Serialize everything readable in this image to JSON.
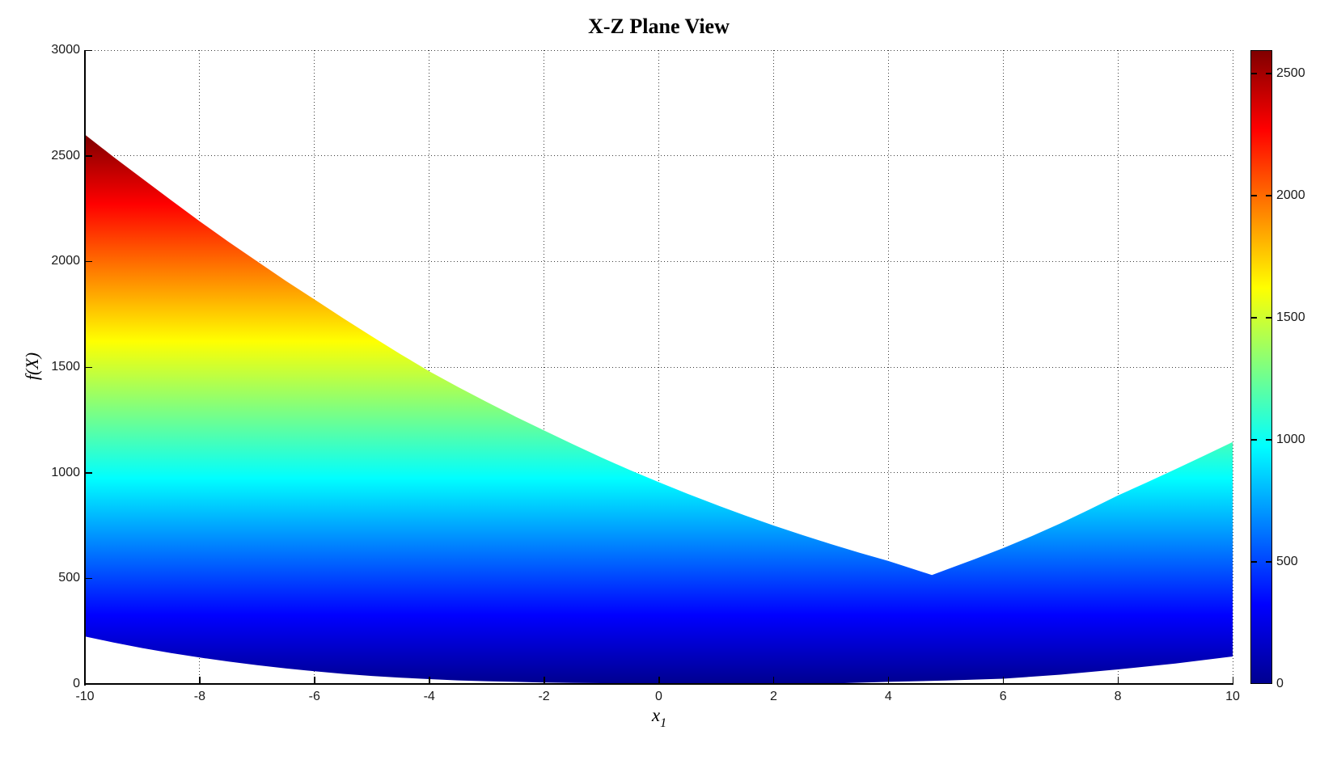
{
  "title": "X-Z Plane View",
  "xlabel": {
    "base": "x",
    "sub": "1"
  },
  "ylabel": "f(X)",
  "chart_data": {
    "type": "area",
    "title": "X-Z Plane View",
    "xlabel": "x_1",
    "ylabel": "f(X)",
    "xlim": [
      -10,
      10
    ],
    "ylim": [
      0,
      3000
    ],
    "x_ticks": [
      -10,
      -8,
      -6,
      -4,
      -2,
      0,
      2,
      4,
      6,
      8,
      10
    ],
    "y_ticks": [
      0,
      500,
      1000,
      1500,
      2000,
      2500,
      3000
    ],
    "grid": true,
    "grid_style": "dotted",
    "legend": "none",
    "colormap": "jet",
    "color_range": [
      0,
      2596
    ],
    "colorbar_ticks": [
      0,
      500,
      1000,
      1500,
      2000,
      2500
    ],
    "colormap_stops": [
      {
        "value": 0,
        "color": "#00008f"
      },
      {
        "value": 324.5,
        "color": "#0000ff"
      },
      {
        "value": 973.5,
        "color": "#00ffff"
      },
      {
        "value": 1622.5,
        "color": "#ffff00"
      },
      {
        "value": 2271.5,
        "color": "#ff0000"
      },
      {
        "value": 2596,
        "color": "#7f0000"
      }
    ],
    "upper_envelope": {
      "x": [
        -10,
        -9.5,
        -9,
        -8.5,
        -8,
        -7.5,
        -7,
        -6.5,
        -6,
        -5.5,
        -5,
        -4.5,
        -4,
        -3.5,
        -3,
        -2.5,
        -2,
        -1.5,
        -1,
        -0.5,
        0,
        0.5,
        1,
        1.5,
        2,
        2.5,
        3,
        3.5,
        4,
        4.76,
        5,
        5.5,
        6,
        6.5,
        7,
        7.5,
        8,
        8.5,
        9,
        9.5,
        10
      ],
      "f": [
        2600,
        2494,
        2392,
        2290,
        2190,
        2093,
        2000,
        1908,
        1820,
        1731,
        1645,
        1561,
        1480,
        1406,
        1335,
        1266,
        1200,
        1135,
        1072,
        1012,
        955,
        900,
        848,
        798,
        750,
        705,
        662,
        621,
        582,
        516,
        540,
        590,
        643,
        700,
        760,
        825,
        892,
        953,
        1016,
        1080,
        1145
      ]
    },
    "lower_envelope": {
      "x": [
        -10,
        -9.5,
        -9,
        -8.5,
        -8,
        -7.5,
        -7,
        -6.5,
        -6,
        -5.5,
        -5,
        -4.5,
        -4,
        -3.5,
        -3,
        -2.5,
        -2,
        -1.5,
        -1,
        0,
        1,
        2,
        3,
        4,
        5,
        6,
        7,
        8,
        9,
        10
      ],
      "f": [
        225,
        196,
        170,
        146,
        125,
        106,
        89,
        74,
        60,
        48,
        38,
        30,
        23,
        17,
        13,
        10,
        7,
        5,
        4,
        2,
        1,
        0,
        2,
        10,
        16,
        25,
        44,
        69,
        97,
        130
      ]
    },
    "min_point": {
      "x": 4.76,
      "f": 516
    }
  },
  "colors": {
    "background": "#ffffff",
    "axis": "#000000",
    "grid": "#3c3c3c",
    "tick_label": "#1a1a1a"
  }
}
